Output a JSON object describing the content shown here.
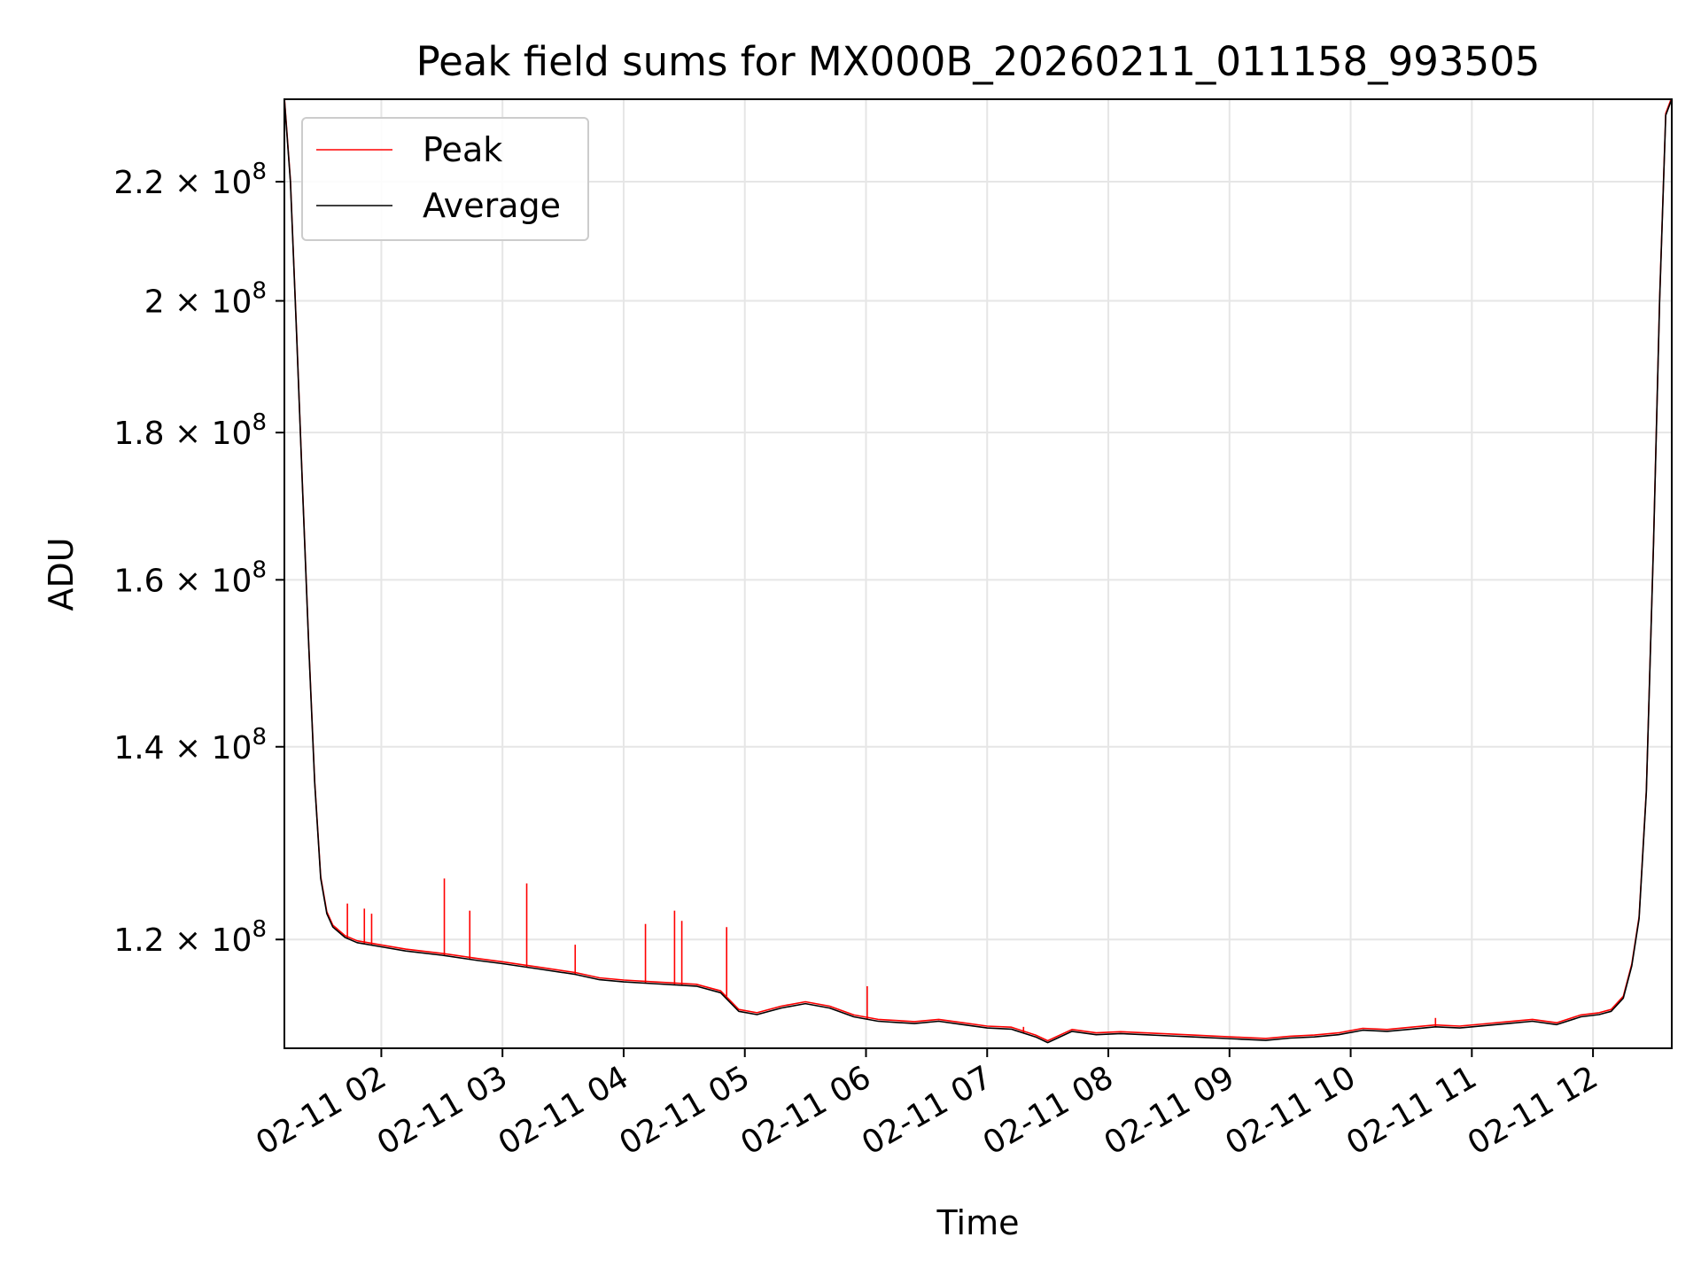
{
  "chart_data": {
    "type": "line",
    "title": "Peak field sums for MX000B_20260211_011158_993505",
    "xlabel": "Time",
    "ylabel": "ADU",
    "yscale": "log",
    "grid": true,
    "legend_position": "top-left",
    "x_range_hours": [
      1.2,
      12.65
    ],
    "ylim": [
      110000000,
      235000000
    ],
    "x_ticks": [
      {
        "label": "02-11 02",
        "hour": 2
      },
      {
        "label": "02-11 03",
        "hour": 3
      },
      {
        "label": "02-11 04",
        "hour": 4
      },
      {
        "label": "02-11 05",
        "hour": 5
      },
      {
        "label": "02-11 06",
        "hour": 6
      },
      {
        "label": "02-11 07",
        "hour": 7
      },
      {
        "label": "02-11 08",
        "hour": 8
      },
      {
        "label": "02-11 09",
        "hour": 9
      },
      {
        "label": "02-11 10",
        "hour": 10
      },
      {
        "label": "02-11 11",
        "hour": 11
      },
      {
        "label": "02-11 12",
        "hour": 12
      }
    ],
    "y_ticks": [
      {
        "value": 120000000,
        "mantissa": "1.2",
        "exponent": "8"
      },
      {
        "value": 140000000,
        "mantissa": "1.4",
        "exponent": "8"
      },
      {
        "value": 160000000,
        "mantissa": "1.6",
        "exponent": "8"
      },
      {
        "value": 180000000,
        "mantissa": "1.8",
        "exponent": "8"
      },
      {
        "value": 200000000,
        "mantissa": "2",
        "exponent": "8"
      },
      {
        "value": 220000000,
        "mantissa": "2.2",
        "exponent": "8"
      }
    ],
    "series": [
      {
        "name": "Peak",
        "color": "#ff0000",
        "spikes": [
          [
            1.72,
            123500000
          ],
          [
            1.86,
            123000000
          ],
          [
            1.92,
            122500000
          ],
          [
            2.52,
            126000000
          ],
          [
            2.73,
            122800000
          ],
          [
            3.2,
            125500000
          ],
          [
            3.6,
            119500000
          ],
          [
            4.18,
            121500000
          ],
          [
            4.42,
            122800000
          ],
          [
            4.48,
            121800000
          ],
          [
            4.85,
            121200000
          ],
          [
            6.01,
            115600000
          ],
          [
            7.3,
            111900000
          ],
          [
            10.7,
            112700000
          ]
        ]
      },
      {
        "name": "Average",
        "color": "#000000",
        "points": [
          [
            1.2,
            235000000
          ],
          [
            1.25,
            220000000
          ],
          [
            1.3,
            195000000
          ],
          [
            1.35,
            172000000
          ],
          [
            1.4,
            152000000
          ],
          [
            1.45,
            136000000
          ],
          [
            1.5,
            126000000
          ],
          [
            1.55,
            122500000
          ],
          [
            1.6,
            121200000
          ],
          [
            1.7,
            120200000
          ],
          [
            1.8,
            119700000
          ],
          [
            2.0,
            119300000
          ],
          [
            2.2,
            118900000
          ],
          [
            2.5,
            118500000
          ],
          [
            2.8,
            118000000
          ],
          [
            3.0,
            117700000
          ],
          [
            3.3,
            117200000
          ],
          [
            3.6,
            116700000
          ],
          [
            3.8,
            116200000
          ],
          [
            4.0,
            116000000
          ],
          [
            4.3,
            115800000
          ],
          [
            4.6,
            115600000
          ],
          [
            4.8,
            115000000
          ],
          [
            4.95,
            113300000
          ],
          [
            5.1,
            113000000
          ],
          [
            5.3,
            113600000
          ],
          [
            5.5,
            114000000
          ],
          [
            5.7,
            113600000
          ],
          [
            5.9,
            112800000
          ],
          [
            6.1,
            112400000
          ],
          [
            6.4,
            112200000
          ],
          [
            6.6,
            112400000
          ],
          [
            6.8,
            112100000
          ],
          [
            7.0,
            111800000
          ],
          [
            7.2,
            111700000
          ],
          [
            7.4,
            111000000
          ],
          [
            7.5,
            110500000
          ],
          [
            7.7,
            111500000
          ],
          [
            7.9,
            111200000
          ],
          [
            8.1,
            111300000
          ],
          [
            8.3,
            111200000
          ],
          [
            8.5,
            111100000
          ],
          [
            8.7,
            111000000
          ],
          [
            8.9,
            110900000
          ],
          [
            9.1,
            110800000
          ],
          [
            9.3,
            110700000
          ],
          [
            9.5,
            110900000
          ],
          [
            9.7,
            111000000
          ],
          [
            9.9,
            111200000
          ],
          [
            10.1,
            111600000
          ],
          [
            10.3,
            111500000
          ],
          [
            10.5,
            111700000
          ],
          [
            10.7,
            111900000
          ],
          [
            10.9,
            111800000
          ],
          [
            11.1,
            112000000
          ],
          [
            11.3,
            112200000
          ],
          [
            11.5,
            112400000
          ],
          [
            11.7,
            112100000
          ],
          [
            11.9,
            112800000
          ],
          [
            12.05,
            113000000
          ],
          [
            12.15,
            113300000
          ],
          [
            12.25,
            114500000
          ],
          [
            12.32,
            117500000
          ],
          [
            12.38,
            122000000
          ],
          [
            12.44,
            135000000
          ],
          [
            12.5,
            165000000
          ],
          [
            12.55,
            200000000
          ],
          [
            12.6,
            232000000
          ],
          [
            12.65,
            235000000
          ]
        ]
      }
    ]
  }
}
